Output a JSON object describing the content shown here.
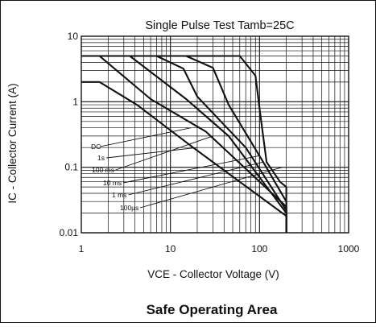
{
  "chart_data": {
    "type": "line",
    "title": "Single Pulse Test Tamb=25C",
    "caption": "Safe Operating Area",
    "xlabel_sym": "VCE",
    "xlabel_rest": " - Collector Voltage (V)",
    "ylabel_sym": "IC",
    "ylabel_rest": " - Collector Current (A)",
    "x_scale": "log",
    "y_scale": "log",
    "xlim": [
      1,
      1000
    ],
    "ylim": [
      0.01,
      10
    ],
    "x_ticks": [
      "1",
      "10",
      "100",
      "1000"
    ],
    "y_ticks": [
      "0.01",
      "0.1",
      "1",
      "10"
    ],
    "grid": true,
    "series": [
      {
        "name": "DC",
        "x": [
          1,
          1.6,
          4.2,
          18,
          200,
          200
        ],
        "y": [
          2,
          2,
          0.9,
          0.2,
          0.018,
          0.01
        ]
      },
      {
        "name": "1s",
        "x": [
          1,
          1.6,
          6,
          25,
          200,
          200
        ],
        "y": [
          5,
          5,
          1.1,
          0.35,
          0.025,
          0.01
        ]
      },
      {
        "name": "100 ms",
        "x": [
          1,
          1.6,
          3.5,
          15,
          45,
          200,
          200
        ],
        "y": [
          5,
          5,
          5,
          1.1,
          0.3,
          0.02,
          0.01
        ]
      },
      {
        "name": "10 ms",
        "x": [
          1,
          1.6,
          7,
          14,
          20,
          70,
          200,
          200
        ],
        "y": [
          5,
          5,
          5,
          3.2,
          1.2,
          0.2,
          0.022,
          0.01
        ]
      },
      {
        "name": "1 ms",
        "x": [
          1,
          1.6,
          15,
          30,
          45,
          110,
          200,
          200
        ],
        "y": [
          5,
          5,
          5,
          3.3,
          0.9,
          0.12,
          0.03,
          0.01
        ]
      },
      {
        "name": "100µs",
        "x": [
          1,
          1.6,
          60,
          90,
          100,
          120,
          170,
          200,
          200
        ],
        "y": [
          5,
          5,
          5,
          2.5,
          0.8,
          0.12,
          0.06,
          0.05,
          0.01
        ]
      }
    ],
    "leader_targets": [
      [
        17,
        0.4
      ],
      [
        20,
        0.2
      ],
      [
        30,
        0.3
      ],
      [
        100,
        0.15
      ],
      [
        110,
        0.12
      ],
      [
        180,
        0.1
      ]
    ]
  }
}
